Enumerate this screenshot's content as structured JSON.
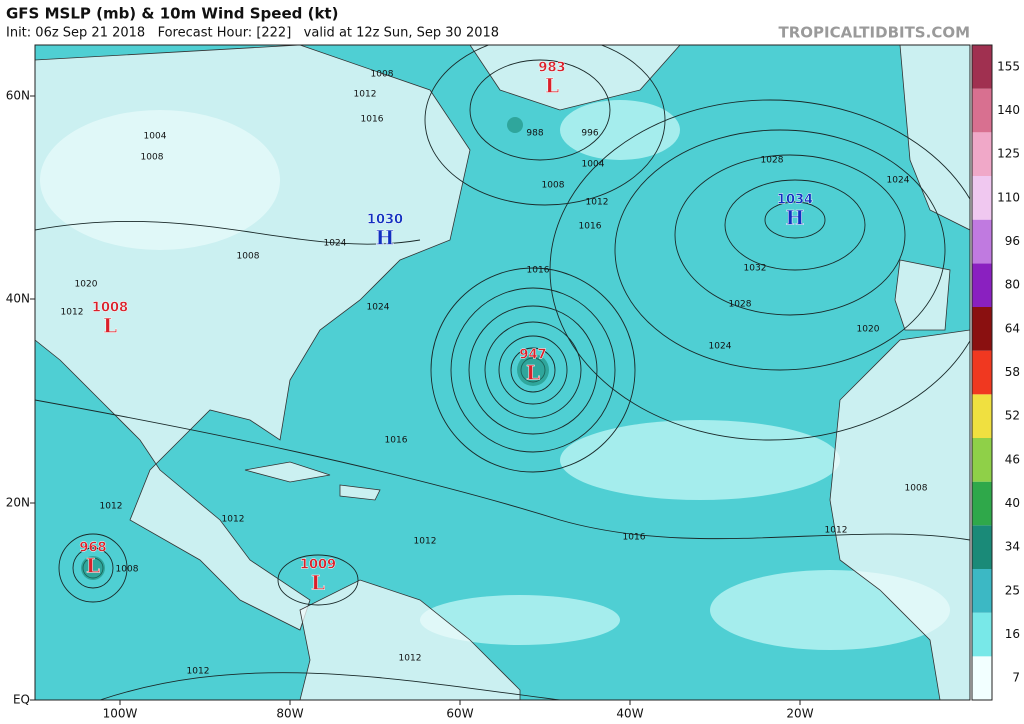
{
  "header": {
    "title": "GFS MSLP (mb) & 10m Wind Speed (kt)",
    "subtitle": "Init: 06z Sep 21 2018   Forecast Hour: [222]   valid at 12z Sun, Sep 30 2018",
    "brand": "TROPICALTIDBITS.COM"
  },
  "map": {
    "lat_labels": [
      "60N",
      "40N",
      "20N",
      "EQ"
    ],
    "lon_labels": [
      "100W",
      "80W",
      "60W",
      "40W",
      "20W"
    ],
    "centers": [
      {
        "type": "L",
        "value": "983",
        "color": "#d9202a"
      },
      {
        "type": "H",
        "value": "1030",
        "color": "#1030c0"
      },
      {
        "type": "H",
        "value": "1034",
        "color": "#1030c0"
      },
      {
        "type": "L",
        "value": "1008",
        "color": "#d9202a"
      },
      {
        "type": "L",
        "value": "947",
        "color": "#d9202a"
      },
      {
        "type": "L",
        "value": "968",
        "color": "#d9202a"
      },
      {
        "type": "L",
        "value": "1009",
        "color": "#d9202a"
      }
    ],
    "isobar_labels": [
      "1008",
      "1012",
      "1004",
      "1008",
      "1016",
      "988",
      "996",
      "1004",
      "1008",
      "1012",
      "1016",
      "1016",
      "1024",
      "1024",
      "1028",
      "1032",
      "1028",
      "1024",
      "1020",
      "1024",
      "1020",
      "1012",
      "1008",
      "1016",
      "1016",
      "1012",
      "1012",
      "1012",
      "1008",
      "1012",
      "1012",
      "1008",
      "1012"
    ]
  },
  "colorbar": {
    "levels": [
      {
        "value": 7,
        "color": "#f2ffff"
      },
      {
        "value": 16,
        "color": "#78e8e8"
      },
      {
        "value": 25,
        "color": "#3cb8c4"
      },
      {
        "value": 34,
        "color": "#1a8a78"
      },
      {
        "value": 40,
        "color": "#2fa84a"
      },
      {
        "value": 46,
        "color": "#8fd048"
      },
      {
        "value": 52,
        "color": "#f0e040"
      },
      {
        "value": 58,
        "color": "#f03820"
      },
      {
        "value": 64,
        "color": "#8a1010"
      },
      {
        "value": 80,
        "color": "#8a20c0"
      },
      {
        "value": 96,
        "color": "#c07ae0"
      },
      {
        "value": 110,
        "color": "#f0c8f0"
      },
      {
        "value": 125,
        "color": "#f0a8c8"
      },
      {
        "value": 140,
        "color": "#d87090"
      },
      {
        "value": 155,
        "color": "#a03050"
      }
    ]
  }
}
